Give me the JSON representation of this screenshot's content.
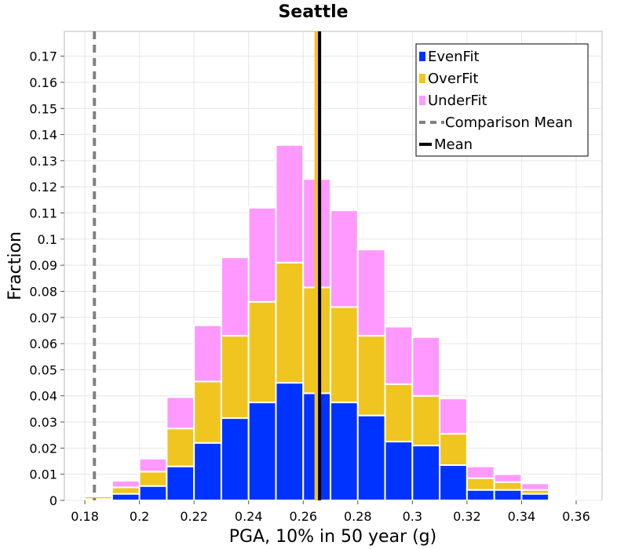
{
  "chart_data": {
    "type": "bar",
    "stacked": true,
    "title": "Seattle",
    "xlabel": "PGA, 10% in 50 year (g)",
    "ylabel": "Fraction",
    "bin_width": 0.01,
    "x": [
      0.18,
      0.19,
      0.2,
      0.21,
      0.22,
      0.23,
      0.24,
      0.25,
      0.26,
      0.27,
      0.28,
      0.29,
      0.3,
      0.31,
      0.32,
      0.33,
      0.34,
      0.35
    ],
    "series": [
      {
        "name": "EvenFit",
        "color": "#0033ff",
        "values": [
          0.0005,
          0.0025,
          0.0055,
          0.013,
          0.022,
          0.0315,
          0.0375,
          0.045,
          0.041,
          0.0375,
          0.0325,
          0.0225,
          0.021,
          0.0135,
          0.004,
          0.004,
          0.0025,
          0.0005
        ]
      },
      {
        "name": "OverFit",
        "color": "#f0c520",
        "values": [
          0.001,
          0.0025,
          0.0055,
          0.0145,
          0.0235,
          0.0315,
          0.0385,
          0.046,
          0.0405,
          0.0365,
          0.0305,
          0.022,
          0.019,
          0.012,
          0.0045,
          0.003,
          0.0015,
          0.0005
        ]
      },
      {
        "name": "UnderFit",
        "color": "#ff99ff",
        "values": [
          0.0005,
          0.0025,
          0.005,
          0.012,
          0.0215,
          0.03,
          0.036,
          0.045,
          0.0415,
          0.037,
          0.033,
          0.022,
          0.0225,
          0.0135,
          0.0045,
          0.003,
          0.0025,
          0.0005
        ]
      }
    ],
    "lines": [
      {
        "name": "Comparison Mean",
        "x": 0.1835,
        "style": "dashed",
        "color": "#808080"
      },
      {
        "name": "Mean",
        "x": 0.266,
        "style": "solid",
        "color": "#000000"
      }
    ],
    "extra_line": {
      "x": 0.265,
      "color": "#f0c520"
    },
    "xlim": [
      0.1725,
      0.3695
    ],
    "ylim": [
      0,
      0.1795
    ],
    "xticks": [
      0.18,
      0.2,
      0.22,
      0.24,
      0.26,
      0.28,
      0.3,
      0.32,
      0.34,
      0.36
    ],
    "xtick_labels": [
      "0.18",
      "0.2",
      "0.22",
      "0.24",
      "0.26",
      "0.28",
      "0.3",
      "0.32",
      "0.34",
      "0.36"
    ],
    "yticks": [
      0,
      0.01,
      0.02,
      0.03,
      0.04,
      0.05,
      0.06,
      0.07,
      0.08,
      0.09,
      0.1,
      0.11,
      0.12,
      0.13,
      0.14,
      0.15,
      0.16,
      0.17
    ],
    "ytick_labels": [
      "0",
      "0.01",
      "0.02",
      "0.03",
      "0.04",
      "0.05",
      "0.06",
      "0.07",
      "0.08",
      "0.09",
      "0.1",
      "0.11",
      "0.12",
      "0.13",
      "0.14",
      "0.15",
      "0.16",
      "0.17"
    ],
    "grid": true,
    "legend": {
      "placement": "top-right",
      "entries": [
        {
          "label": "EvenFit",
          "kind": "patch",
          "color": "#0033ff"
        },
        {
          "label": "OverFit",
          "kind": "patch",
          "color": "#f0c520"
        },
        {
          "label": "UnderFit",
          "kind": "patch",
          "color": "#ff99ff"
        },
        {
          "label": "Comparison Mean",
          "kind": "dashed",
          "color": "#808080"
        },
        {
          "label": "Mean",
          "kind": "solid",
          "color": "#000000"
        }
      ]
    }
  }
}
